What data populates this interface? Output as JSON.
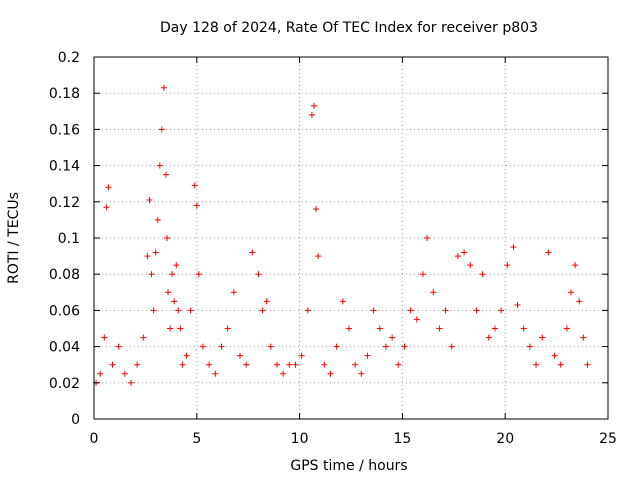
{
  "chart_data": {
    "type": "scatter",
    "title": "Day 128 of 2024, Rate Of TEC Index for receiver p803",
    "xlabel": "GPS time / hours",
    "ylabel": "ROTI / TECUs",
    "xlim": [
      0,
      25
    ],
    "ylim": [
      0,
      0.2
    ],
    "xticks": [
      0,
      5,
      10,
      15,
      20,
      25
    ],
    "xtick_labels": [
      "0",
      "5",
      "10",
      "15",
      "20",
      "25"
    ],
    "yticks": [
      0,
      0.02,
      0.04,
      0.06,
      0.08,
      0.1,
      0.12,
      0.14,
      0.16,
      0.18,
      0.2
    ],
    "ytick_labels": [
      "0",
      "0.02",
      "0.04",
      "0.06",
      "0.08",
      "0.1",
      "0.12",
      "0.14",
      "0.16",
      "0.18",
      "0.2"
    ],
    "grid": true,
    "marker": "plus",
    "color": "#ff0000",
    "series": [
      {
        "x": [
          0.1,
          0.3,
          0.5,
          0.6,
          0.7,
          0.9,
          1.2,
          1.5,
          1.8,
          2.1,
          2.4,
          2.6,
          2.7,
          2.8,
          2.9,
          3.0,
          3.1,
          3.2,
          3.3,
          3.4,
          3.5,
          3.55,
          3.6,
          3.7,
          3.8,
          3.9,
          4.0,
          4.1,
          4.2,
          4.3,
          4.5,
          4.7,
          4.9,
          5.0,
          5.1,
          5.3,
          5.6,
          5.9,
          6.2,
          6.5,
          6.8,
          7.1,
          7.4,
          7.7,
          8.0,
          8.2,
          8.4,
          8.6,
          8.9,
          9.2,
          9.5,
          9.8,
          10.1,
          10.4,
          10.6,
          10.7,
          10.8,
          10.9,
          11.2,
          11.5,
          11.8,
          12.1,
          12.4,
          12.7,
          13.0,
          13.3,
          13.6,
          13.9,
          14.2,
          14.5,
          14.8,
          15.1,
          15.4,
          15.7,
          16.0,
          16.2,
          16.5,
          16.8,
          17.1,
          17.4,
          17.7,
          18.0,
          18.3,
          18.6,
          18.9,
          19.2,
          19.5,
          19.8,
          20.1,
          20.4,
          20.6,
          20.9,
          21.2,
          21.5,
          21.8,
          22.1,
          22.4,
          22.7,
          23.0,
          23.2,
          23.4,
          23.6,
          23.8,
          24.0
        ],
        "y": [
          0.02,
          0.025,
          0.045,
          0.117,
          0.128,
          0.03,
          0.04,
          0.025,
          0.02,
          0.03,
          0.045,
          0.09,
          0.121,
          0.08,
          0.06,
          0.092,
          0.11,
          0.14,
          0.16,
          0.183,
          0.135,
          0.1,
          0.07,
          0.05,
          0.08,
          0.065,
          0.085,
          0.06,
          0.05,
          0.03,
          0.035,
          0.06,
          0.129,
          0.118,
          0.08,
          0.04,
          0.03,
          0.025,
          0.04,
          0.05,
          0.07,
          0.035,
          0.03,
          0.092,
          0.08,
          0.06,
          0.065,
          0.04,
          0.03,
          0.025,
          0.03,
          0.03,
          0.035,
          0.06,
          0.168,
          0.173,
          0.116,
          0.09,
          0.03,
          0.025,
          0.04,
          0.065,
          0.05,
          0.03,
          0.025,
          0.035,
          0.06,
          0.05,
          0.04,
          0.045,
          0.03,
          0.04,
          0.06,
          0.055,
          0.08,
          0.1,
          0.07,
          0.05,
          0.06,
          0.04,
          0.09,
          0.092,
          0.085,
          0.06,
          0.08,
          0.045,
          0.05,
          0.06,
          0.085,
          0.095,
          0.063,
          0.05,
          0.04,
          0.03,
          0.045,
          0.092,
          0.035,
          0.03,
          0.05,
          0.07,
          0.085,
          0.065,
          0.045,
          0.03
        ]
      }
    ]
  }
}
